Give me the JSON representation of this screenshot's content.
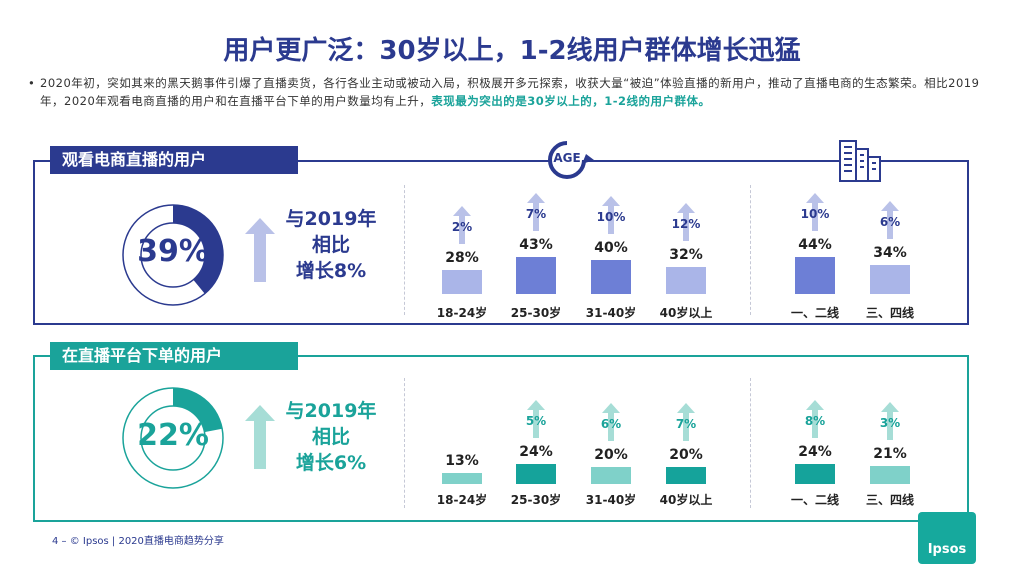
{
  "page": {
    "title": "用户更广泛：30岁以上，1-2线用户群体增长迅猛",
    "intro_bullet": "•",
    "intro_main": "2020年初，突如其来的黑天鹅事件引爆了直播卖货，各行各业主动或被动入局，积极展开多元探索，收获大量“被迫”体验直播的新用户，推动了直播电商的生态繁荣。相比2019年，2020年观看电商直播的用户和在直播平台下单的用户数量均有上升，",
    "intro_highlight": "表现最为突出的是30岁以上的，1-2线的用户群体。",
    "age_badge": "AGE",
    "footer": "4 –  © Ipsos | 2020直播电商趋势分享",
    "logo_text": "Ipsos"
  },
  "colors": {
    "navy": "#2b3a8f",
    "teal": "#1aa39a",
    "blue_dark": "#6d7fd6",
    "blue_light": "#aab5e8",
    "teal_dark": "#15a39b",
    "teal_light": "#7fd1c9",
    "arrow_blue": "#b9c1e8",
    "arrow_teal": "#a6ddd6"
  },
  "chart_data": [
    {
      "type": "bar",
      "title": "观看电商直播的用户",
      "overall": {
        "value": 39,
        "label": "39%",
        "compare_line1": "与2019年",
        "compare_line2": "相比",
        "compare_line3": "增长8%"
      },
      "categories": [
        "18-24岁",
        "25-30岁",
        "31-40岁",
        "40岁以上",
        "一、二线",
        "三、四线"
      ],
      "values": [
        28,
        43,
        40,
        32,
        44,
        34
      ],
      "value_labels": [
        "28%",
        "43%",
        "40%",
        "32%",
        "44%",
        "34%"
      ],
      "growth": [
        "2%",
        "7%",
        "10%",
        "12%",
        "10%",
        "6%"
      ],
      "highlight": [
        false,
        true,
        true,
        false,
        true,
        false
      ]
    },
    {
      "type": "bar",
      "title": "在直播平台下单的用户",
      "overall": {
        "value": 22,
        "label": "22%",
        "compare_line1": "与2019年",
        "compare_line2": "相比",
        "compare_line3": "增长6%"
      },
      "categories": [
        "18-24岁",
        "25-30岁",
        "31-40岁",
        "40岁以上",
        "一、二线",
        "三、四线"
      ],
      "values": [
        13,
        24,
        20,
        20,
        24,
        21
      ],
      "value_labels": [
        "13%",
        "24%",
        "20%",
        "20%",
        "24%",
        "21%"
      ],
      "growth": [
        "",
        "5%",
        "6%",
        "7%",
        "8%",
        "3%"
      ],
      "highlight": [
        false,
        true,
        false,
        true,
        true,
        false
      ]
    }
  ]
}
